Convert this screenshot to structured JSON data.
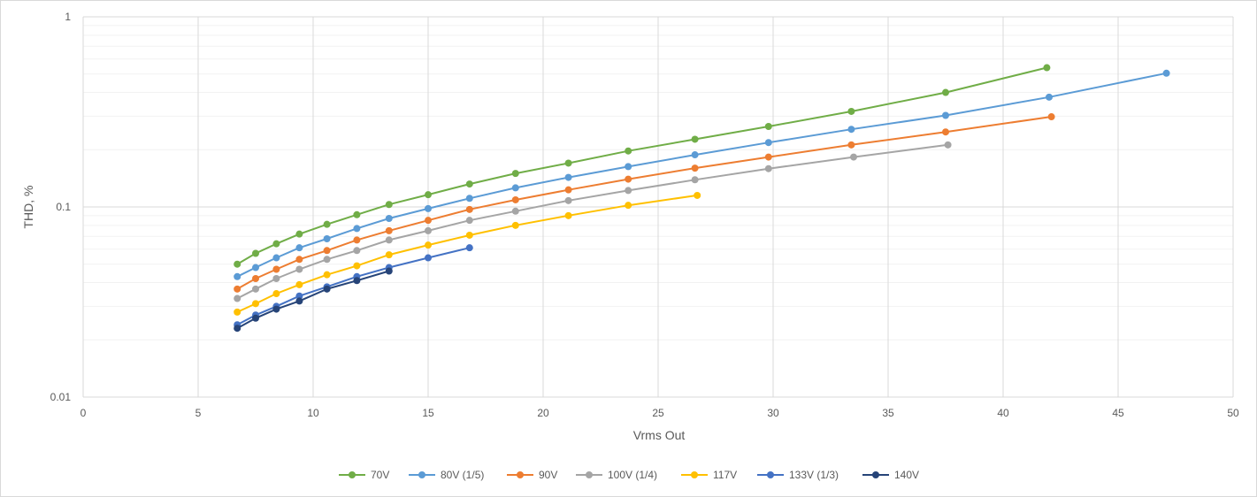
{
  "chart_data": {
    "type": "line",
    "xlabel": "Vrms Out",
    "ylabel": "THD, %",
    "xlim": [
      0,
      50
    ],
    "ylim": [
      0.01,
      1
    ],
    "yscale": "log",
    "x_ticks": [
      "0",
      "5",
      "10",
      "15",
      "20",
      "25",
      "30",
      "35",
      "40",
      "45",
      "50"
    ],
    "y_ticks": [
      "0.01",
      "0.1",
      "1"
    ],
    "grid": true,
    "legend_position": "bottom",
    "series": [
      {
        "name": "70V",
        "color": "#70ad47",
        "points": [
          [
            6.7,
            0.05
          ],
          [
            7.5,
            0.057
          ],
          [
            8.4,
            0.064
          ],
          [
            9.4,
            0.072
          ],
          [
            10.6,
            0.081
          ],
          [
            11.9,
            0.091
          ],
          [
            13.3,
            0.103
          ],
          [
            15.0,
            0.116
          ],
          [
            16.8,
            0.132
          ],
          [
            18.8,
            0.15
          ],
          [
            21.1,
            0.17
          ],
          [
            23.7,
            0.197
          ],
          [
            26.6,
            0.227
          ],
          [
            29.8,
            0.265
          ],
          [
            33.4,
            0.318
          ],
          [
            37.5,
            0.4
          ],
          [
            41.9,
            0.54
          ]
        ]
      },
      {
        "name": "80V (1/5)",
        "color": "#5b9bd5",
        "points": [
          [
            6.7,
            0.043
          ],
          [
            7.5,
            0.048
          ],
          [
            8.4,
            0.054
          ],
          [
            9.4,
            0.061
          ],
          [
            10.6,
            0.068
          ],
          [
            11.9,
            0.077
          ],
          [
            13.3,
            0.087
          ],
          [
            15.0,
            0.098
          ],
          [
            16.8,
            0.111
          ],
          [
            18.8,
            0.126
          ],
          [
            21.1,
            0.143
          ],
          [
            23.7,
            0.163
          ],
          [
            26.6,
            0.188
          ],
          [
            29.8,
            0.218
          ],
          [
            33.4,
            0.256
          ],
          [
            37.5,
            0.303
          ],
          [
            42.0,
            0.378
          ],
          [
            47.1,
            0.505
          ]
        ]
      },
      {
        "name": "90V",
        "color": "#ed7d31",
        "points": [
          [
            6.7,
            0.037
          ],
          [
            7.5,
            0.042
          ],
          [
            8.4,
            0.047
          ],
          [
            9.4,
            0.053
          ],
          [
            10.6,
            0.059
          ],
          [
            11.9,
            0.067
          ],
          [
            13.3,
            0.075
          ],
          [
            15.0,
            0.085
          ],
          [
            16.8,
            0.097
          ],
          [
            18.8,
            0.109
          ],
          [
            21.1,
            0.123
          ],
          [
            23.7,
            0.14
          ],
          [
            26.6,
            0.16
          ],
          [
            29.8,
            0.183
          ],
          [
            33.4,
            0.212
          ],
          [
            37.5,
            0.248
          ],
          [
            42.1,
            0.298
          ]
        ]
      },
      {
        "name": "100V (1/4)",
        "color": "#a5a5a5",
        "points": [
          [
            6.7,
            0.033
          ],
          [
            7.5,
            0.037
          ],
          [
            8.4,
            0.042
          ],
          [
            9.4,
            0.047
          ],
          [
            10.6,
            0.053
          ],
          [
            11.9,
            0.059
          ],
          [
            13.3,
            0.067
          ],
          [
            15.0,
            0.075
          ],
          [
            16.8,
            0.085
          ],
          [
            18.8,
            0.095
          ],
          [
            21.1,
            0.108
          ],
          [
            23.7,
            0.122
          ],
          [
            26.6,
            0.139
          ],
          [
            29.8,
            0.159
          ],
          [
            33.5,
            0.183
          ],
          [
            37.6,
            0.212
          ]
        ]
      },
      {
        "name": "117V",
        "color": "#ffc000",
        "points": [
          [
            6.7,
            0.028
          ],
          [
            7.5,
            0.031
          ],
          [
            8.4,
            0.035
          ],
          [
            9.4,
            0.039
          ],
          [
            10.6,
            0.044
          ],
          [
            11.9,
            0.049
          ],
          [
            13.3,
            0.056
          ],
          [
            15.0,
            0.063
          ],
          [
            16.8,
            0.071
          ],
          [
            18.8,
            0.08
          ],
          [
            21.1,
            0.09
          ],
          [
            23.7,
            0.102
          ],
          [
            26.7,
            0.115
          ]
        ]
      },
      {
        "name": "133V (1/3)",
        "color": "#4472c4",
        "points": [
          [
            6.7,
            0.024
          ],
          [
            7.5,
            0.027
          ],
          [
            8.4,
            0.03
          ],
          [
            9.4,
            0.034
          ],
          [
            10.6,
            0.038
          ],
          [
            11.9,
            0.043
          ],
          [
            13.3,
            0.048
          ],
          [
            15.0,
            0.054
          ],
          [
            16.8,
            0.061
          ]
        ]
      },
      {
        "name": "140V",
        "color": "#264478",
        "points": [
          [
            6.7,
            0.023
          ],
          [
            7.5,
            0.026
          ],
          [
            8.4,
            0.029
          ],
          [
            9.4,
            0.032
          ],
          [
            10.6,
            0.037
          ],
          [
            11.9,
            0.041
          ],
          [
            13.3,
            0.046
          ]
        ]
      }
    ]
  }
}
